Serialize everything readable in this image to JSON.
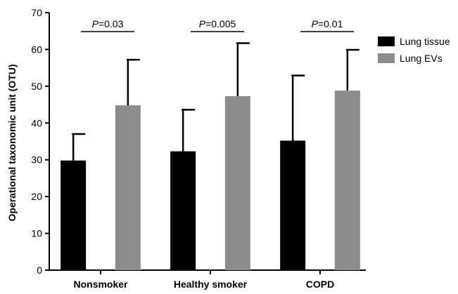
{
  "chart_data": {
    "type": "bar",
    "title": "",
    "xlabel": "",
    "ylabel": "Operational taxonomic unit (OTU)",
    "ylim": [
      0,
      70
    ],
    "yticks": [
      0,
      10,
      20,
      30,
      40,
      50,
      60,
      70
    ],
    "grid": false,
    "legend_position": "top-right",
    "categories": [
      "Nonsmoker",
      "Healthy smoker",
      "COPD"
    ],
    "series": [
      {
        "name": "Lung tissue",
        "color": "#000000",
        "values": [
          29.8,
          32.3,
          35.2
        ],
        "errors": [
          7.2,
          11.3,
          17.7
        ]
      },
      {
        "name": "Lung EVs",
        "color": "#8c8c8c",
        "values": [
          44.8,
          47.3,
          48.8
        ],
        "errors": [
          12.4,
          14.4,
          11.1
        ]
      }
    ],
    "annotations": [
      {
        "prefix": "P",
        "value": "=0.03",
        "category": 0
      },
      {
        "prefix": "P",
        "value": "=0.005",
        "category": 1
      },
      {
        "prefix": "P",
        "value": "=0.01",
        "category": 2
      }
    ]
  }
}
